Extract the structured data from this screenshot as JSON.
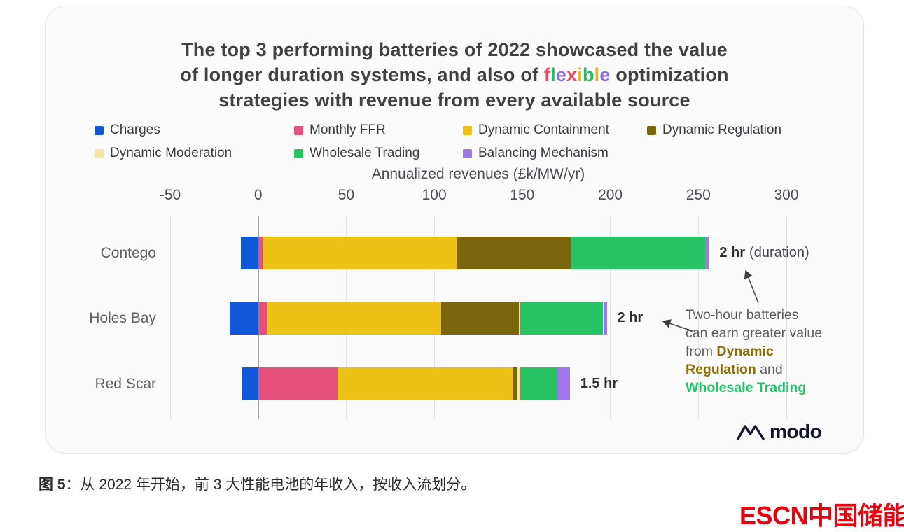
{
  "title": {
    "line1": "The top 3 performing batteries of 2022 showcased the value",
    "line2_pre": "of longer duration systems, and also of ",
    "flexible_letters": [
      {
        "ch": "f",
        "color": "#e74a65"
      },
      {
        "ch": "l",
        "color": "#27b869"
      },
      {
        "ch": "e",
        "color": "#8f6de8"
      },
      {
        "ch": "x",
        "color": "#e74a65"
      },
      {
        "ch": "i",
        "color": "#e7b61b"
      },
      {
        "ch": "b",
        "color": "#27b869"
      },
      {
        "ch": "l",
        "color": "#e7b61b"
      },
      {
        "ch": "e",
        "color": "#8f6de8"
      }
    ],
    "line2_post": " optimization",
    "line3": "strategies with revenue from every available source"
  },
  "legend": {
    "items": [
      {
        "label": "Charges",
        "color": "#1158d8"
      },
      {
        "label": "Monthly FFR",
        "color": "#e5517b"
      },
      {
        "label": "Dynamic Containment",
        "color": "#ecc216"
      },
      {
        "label": "Dynamic Regulation",
        "color": "#7b660e"
      },
      {
        "label": "Dynamic Moderation",
        "color": "#f4e6a0"
      },
      {
        "label": "Wholesale Trading",
        "color": "#28c365"
      },
      {
        "label": "Balancing Mechanism",
        "color": "#9e78e8"
      }
    ]
  },
  "chart_data": {
    "type": "bar",
    "orientation": "horizontal",
    "stacked": true,
    "title": "The top 3 performing batteries of 2022 showcased the value of longer duration systems, and also of flexible optimization strategies with revenue from every available source",
    "xlabel": "Annualized revenues (£k/MW/yr)",
    "categories": [
      "Contego",
      "Holes Bay",
      "Red Scar"
    ],
    "durations": [
      "2 hr",
      "2 hr",
      "1.5 hr"
    ],
    "xlim": [
      -50,
      300
    ],
    "xticks": [
      -50,
      0,
      50,
      100,
      150,
      200,
      250,
      300
    ],
    "grid": true,
    "legend_position": "top",
    "series": [
      {
        "name": "Charges",
        "color": "#1158d8",
        "values": [
          -10,
          -16,
          -9
        ]
      },
      {
        "name": "Monthly FFR",
        "color": "#e5517b",
        "values": [
          3,
          5,
          45
        ]
      },
      {
        "name": "Dynamic Containment",
        "color": "#ecc216",
        "values": [
          110,
          99,
          100
        ]
      },
      {
        "name": "Dynamic Regulation",
        "color": "#7b660e",
        "values": [
          65,
          44,
          2
        ]
      },
      {
        "name": "Dynamic Moderation",
        "color": "#f4e6a0",
        "values": [
          0,
          1,
          2
        ]
      },
      {
        "name": "Wholesale Trading",
        "color": "#28c365",
        "values": [
          76,
          47,
          21
        ]
      },
      {
        "name": "Balancing Mechanism",
        "color": "#9e78e8",
        "values": [
          2,
          2,
          7
        ]
      }
    ]
  },
  "axis": {
    "title": "Annualized revenues (£k/MW/yr)"
  },
  "annotations": {
    "duration_labels": [
      {
        "bold": "2 hr",
        "suffix": "(duration)"
      },
      {
        "bold": "2 hr",
        "suffix": ""
      },
      {
        "bold": "1.5 hr",
        "suffix": ""
      }
    ],
    "note_lines": [
      [
        {
          "t": "Two-hour batteries",
          "c": "gray"
        }
      ],
      [
        {
          "t": "can earn greater value",
          "c": "gray"
        }
      ],
      [
        {
          "t": "from ",
          "c": "gray"
        },
        {
          "t": "Dynamic",
          "c": "olive"
        }
      ],
      [
        {
          "t": "Regulation",
          "c": "olive"
        },
        {
          "t": " and",
          "c": "gray"
        }
      ],
      [
        {
          "t": "Wholesale Trading",
          "c": "green"
        }
      ]
    ]
  },
  "logo": {
    "modo": "modo"
  },
  "caption": {
    "bold": "图 5",
    "rest": "：从 2022 年开始，前 3 大性能电池的年收入，按收入流划分。"
  },
  "footer_logo": {
    "text": "ESCN中国储能网",
    "color": "#e8000f"
  }
}
